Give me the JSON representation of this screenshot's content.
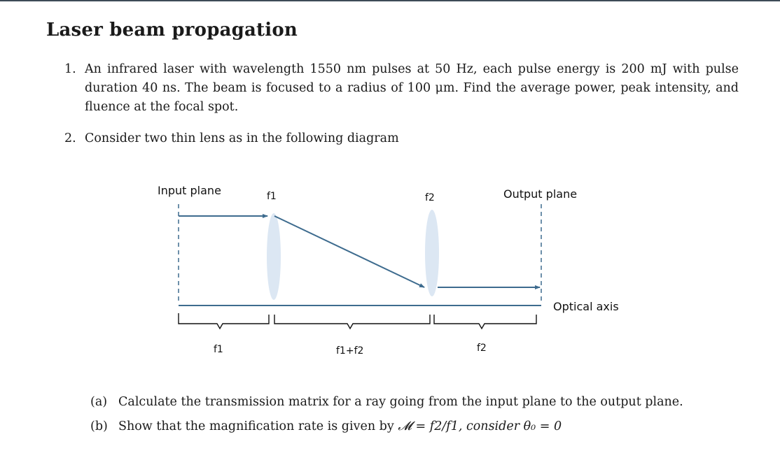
{
  "title": "Laser beam propagation",
  "question1": {
    "number": "1.",
    "text": "An infrared laser with wavelength 1550 nm pulses at 50 Hz, each pulse energy is 200 mJ with pulse duration 40 ns. The beam is focused to a radius of 100 μm. Find the average power, peak intensity, and fluence at the focal spot."
  },
  "question2": {
    "number": "2.",
    "text": "Consider two thin lens as in the following diagram"
  },
  "diagram": {
    "input_plane": "Input plane",
    "output_plane": "Output plane",
    "lens1_label": "f1",
    "lens2_label": "f2",
    "optical_axis": "Optical axis",
    "distance1": "f1",
    "distance2": "f1+f2",
    "distance3": "f2",
    "colors": {
      "ray": "#3d6b8e",
      "lens": "#dce7f3",
      "axis": "#3d6b8e"
    }
  },
  "subquestions": [
    {
      "label": "(a)",
      "text": "Calculate the transmission matrix for a ray going from the input plane to the output plane."
    },
    {
      "label": "(b)",
      "text_before": "Show that the magnification rate is given by ",
      "math": "𝓜 = f2/f1, consider θ₀ = 0"
    }
  ]
}
